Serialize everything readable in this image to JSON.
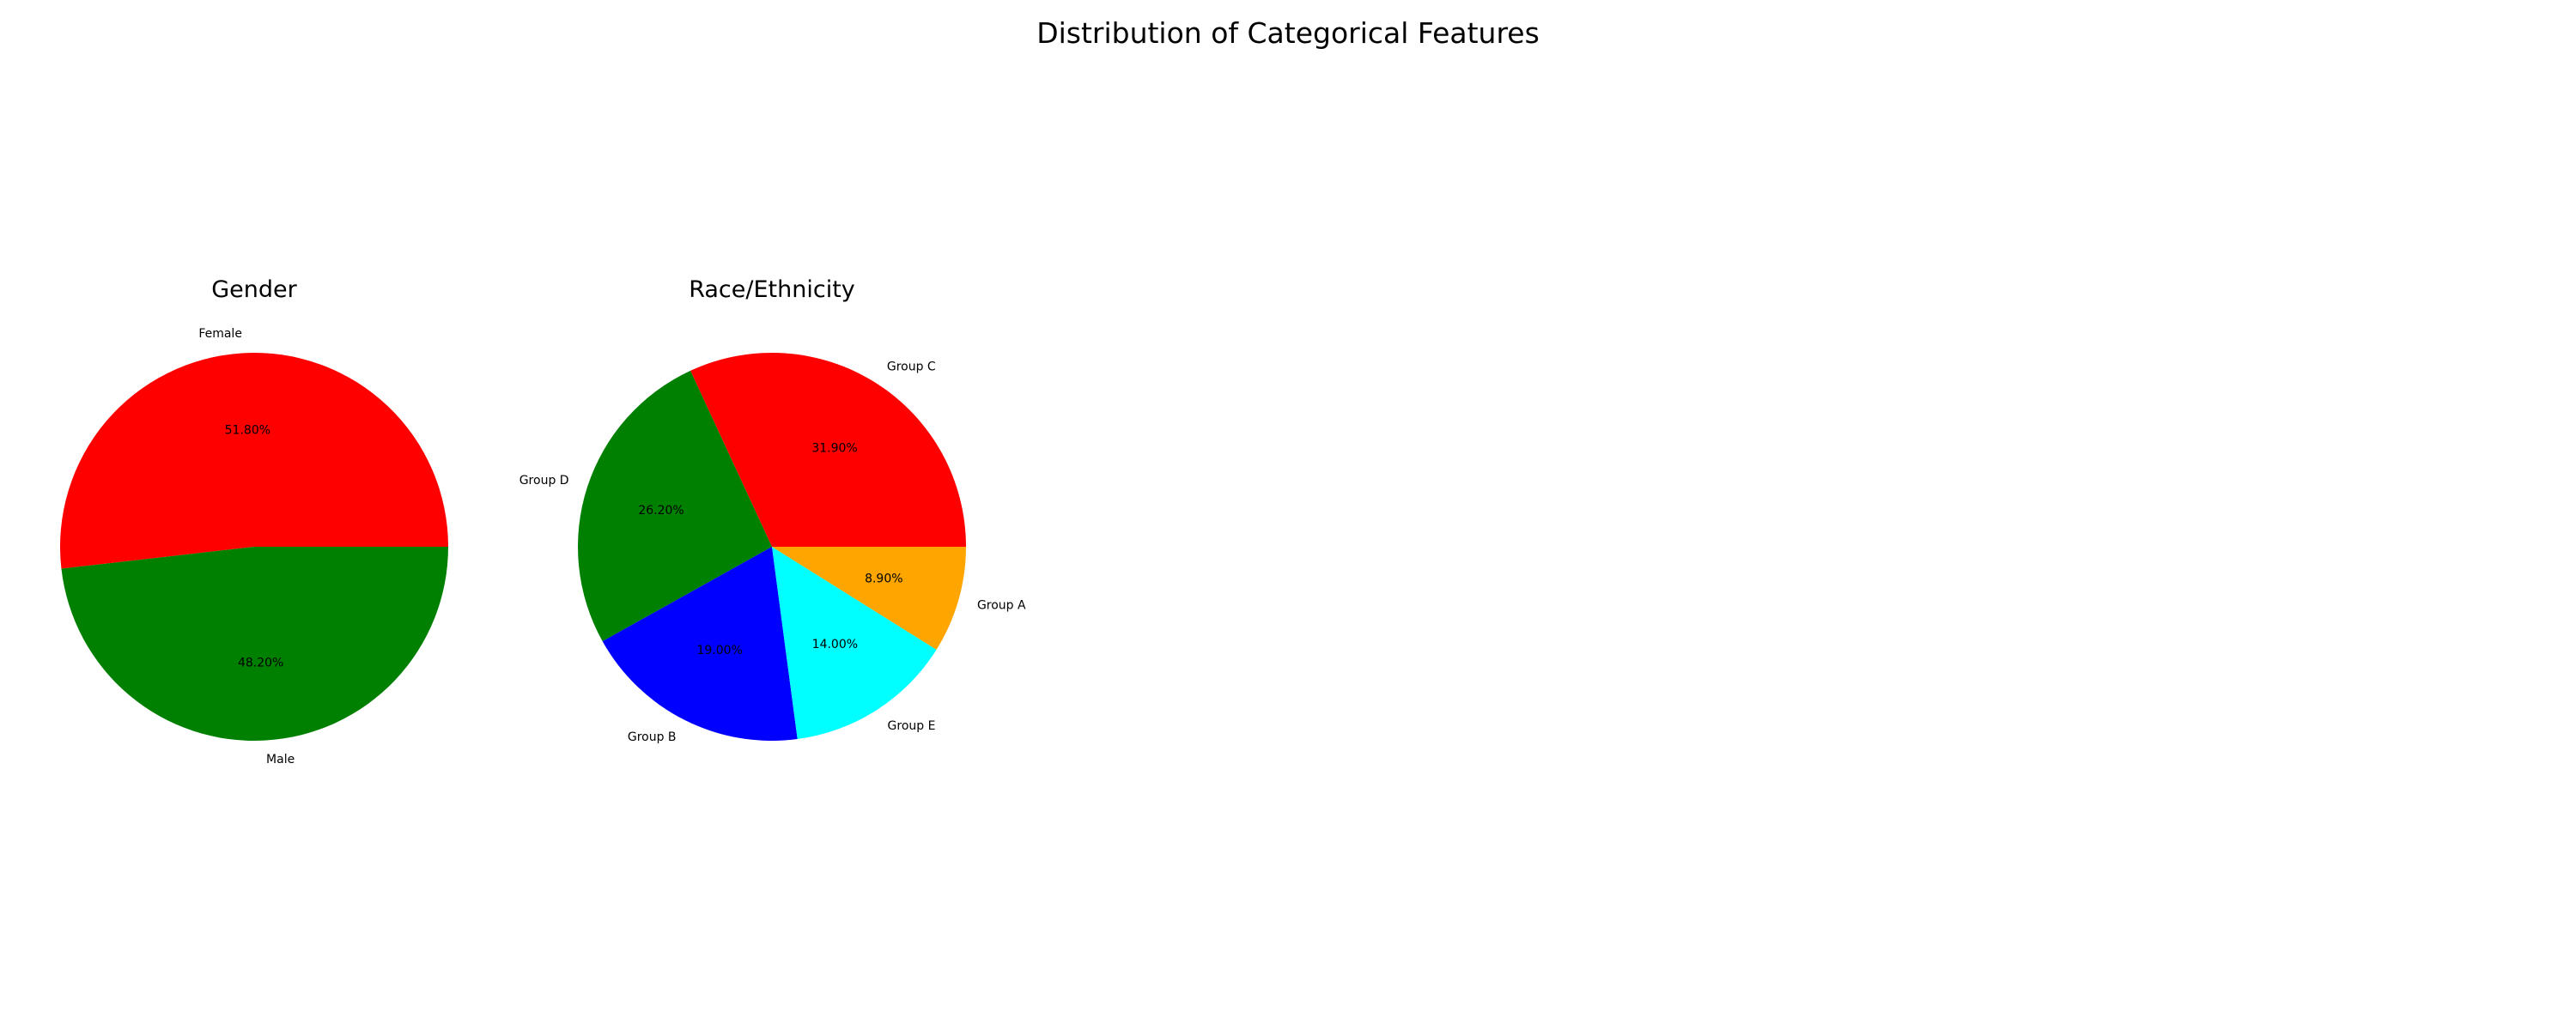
{
  "figure": {
    "title": "Distribution of Categorical Features"
  },
  "chart_data": [
    {
      "type": "pie",
      "title": "Gender",
      "start_angle": 0,
      "slices": [
        {
          "label": "Female",
          "value": 51.8,
          "pct_label": "51.80%",
          "color": "#ff0000"
        },
        {
          "label": "Male",
          "value": 48.2,
          "pct_label": "48.20%",
          "color": "#008000"
        }
      ]
    },
    {
      "type": "pie",
      "title": "Race/Ethnicity",
      "start_angle": 0,
      "slices": [
        {
          "label": "Group C",
          "value": 31.9,
          "pct_label": "31.90%",
          "color": "#ff0000"
        },
        {
          "label": "Group D",
          "value": 26.2,
          "pct_label": "26.20%",
          "color": "#008000"
        },
        {
          "label": "Group B",
          "value": 19.0,
          "pct_label": "19.00%",
          "color": "#0000ff"
        },
        {
          "label": "Group E",
          "value": 14.0,
          "pct_label": "14.00%",
          "color": "#00ffff"
        },
        {
          "label": "Group A",
          "value": 8.9,
          "pct_label": "8.90%",
          "color": "#ffa500"
        }
      ]
    }
  ]
}
